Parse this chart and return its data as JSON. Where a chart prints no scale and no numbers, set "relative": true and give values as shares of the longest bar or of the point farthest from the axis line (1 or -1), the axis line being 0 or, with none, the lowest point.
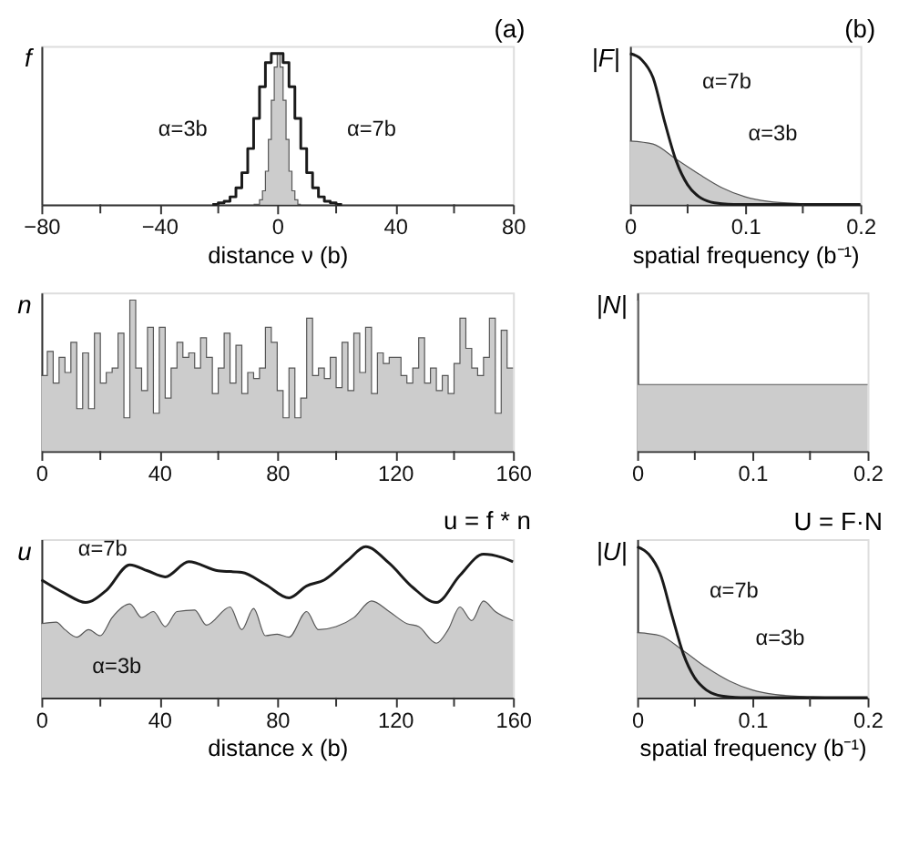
{
  "chart_data": [
    {
      "type": "step",
      "relative": true,
      "title": "(a)",
      "ylabel": "f",
      "xlabel": "distance ν (b)",
      "xlim": [
        -80,
        80
      ],
      "xticks": [
        -80,
        {
          "value": -60,
          "label": null
        },
        -40,
        {
          "value": -20,
          "label": null
        },
        0,
        {
          "value": 20,
          "label": null
        },
        40,
        {
          "value": 60,
          "label": null
        },
        80
      ],
      "series": [
        {
          "type": "area",
          "color": "#cccccc",
          "x": [
            -8,
            -7,
            -6,
            -5,
            -4,
            -3,
            -2,
            -1,
            0,
            1,
            2,
            3,
            4,
            5,
            6,
            7,
            8
          ],
          "values": [
            0,
            0,
            0.03,
            0.09,
            0.22,
            0.43,
            0.69,
            0.91,
            1,
            0.91,
            0.69,
            0.43,
            0.22,
            0.09,
            0.03,
            0,
            0
          ]
        },
        {
          "type": "step",
          "color": "#1a1a1a",
          "x": [
            -22,
            -20,
            -18,
            -16,
            -14,
            -12,
            -10,
            -8,
            -6,
            -4,
            -2,
            0,
            2,
            4,
            6,
            8,
            10,
            12,
            14,
            16,
            18,
            20,
            22
          ],
          "values": [
            0,
            0.01,
            0.02,
            0.05,
            0.11,
            0.21,
            0.37,
            0.57,
            0.78,
            0.94,
            1,
            1,
            0.94,
            0.78,
            0.57,
            0.37,
            0.21,
            0.11,
            0.05,
            0.02,
            0.01,
            0,
            0
          ]
        }
      ],
      "annotations": [
        "α=3b",
        "α=7b"
      ]
    },
    {
      "type": "line",
      "relative": true,
      "title": "(b)",
      "ylabel": "|F|",
      "xlabel": "spatial frequency (b⁻¹)",
      "xlim": [
        0,
        0.2
      ],
      "xticks": [
        0,
        {
          "value": 0.05,
          "label": null
        },
        0.1,
        {
          "value": 0.15,
          "label": null
        },
        0.2
      ],
      "series": [
        {
          "type": "area",
          "color": "#cccccc",
          "x": [
            0,
            0.02,
            0.04,
            0.06,
            0.08,
            0.1,
            0.12,
            0.15,
            0.17,
            0.2
          ],
          "values": [
            0.42,
            0.4,
            0.3,
            0.2,
            0.11,
            0.05,
            0.02,
            0.005,
            0,
            0
          ]
        },
        {
          "type": "line",
          "color": "#1a1a1a",
          "x": [
            0,
            0.01,
            0.02,
            0.03,
            0.04,
            0.05,
            0.06,
            0.07,
            0.08,
            0.09,
            0.2
          ],
          "values": [
            1,
            0.96,
            0.84,
            0.55,
            0.29,
            0.13,
            0.05,
            0.015,
            0.004,
            0,
            0
          ]
        }
      ],
      "annotations": [
        "α=7b",
        "α=3b"
      ]
    },
    {
      "type": "step",
      "relative": true,
      "ylabel": "n",
      "xlim": [
        0,
        160
      ],
      "xticks": [
        0,
        {
          "value": 20,
          "label": null
        },
        40,
        {
          "value": 60,
          "label": null
        },
        80,
        {
          "value": 100,
          "label": null
        },
        120,
        {
          "value": 140,
          "label": null
        },
        160
      ],
      "series": [
        {
          "type": "area",
          "color": "#cccccc",
          "x": [
            0,
            2,
            4,
            6,
            8,
            10,
            12,
            14,
            16,
            18,
            20,
            22,
            24,
            26,
            28,
            30,
            32,
            34,
            36,
            38,
            40,
            42,
            44,
            46,
            48,
            50,
            52,
            54,
            56,
            58,
            60,
            62,
            64,
            66,
            68,
            70,
            72,
            74,
            76,
            78,
            80,
            82,
            84,
            86,
            88,
            90,
            92,
            94,
            96,
            98,
            100,
            102,
            104,
            106,
            108,
            110,
            112,
            114,
            116,
            118,
            120,
            122,
            124,
            126,
            128,
            130,
            132,
            134,
            136,
            138,
            140,
            142,
            144,
            146,
            148,
            150,
            152,
            154,
            156,
            158,
            160
          ],
          "values": [
            0.5,
            0.66,
            0.45,
            0.62,
            0.52,
            0.72,
            0.28,
            0.65,
            0.28,
            0.78,
            0.45,
            0.52,
            0.55,
            0.78,
            0.22,
            1,
            0.55,
            0.4,
            0.82,
            0.25,
            0.82,
            0.35,
            0.55,
            0.72,
            0.62,
            0.65,
            0.55,
            0.75,
            0.62,
            0.38,
            0.55,
            0.78,
            0.45,
            0.7,
            0.38,
            0.52,
            0.48,
            0.55,
            0.82,
            0.72,
            0.4,
            0.22,
            0.55,
            0.22,
            0.35,
            0.88,
            0.5,
            0.55,
            0.48,
            0.62,
            0.42,
            0.72,
            0.4,
            0.78,
            0.52,
            0.82,
            0.38,
            0.65,
            0.58,
            0.62,
            0.62,
            0.5,
            0.45,
            0.55,
            0.75,
            0.45,
            0.55,
            0.4,
            0.5,
            0.38,
            0.58,
            0.88,
            0.68,
            0.55,
            0.5,
            0.62,
            0.88,
            0.25,
            0.8,
            0.55,
            0.55
          ]
        }
      ]
    },
    {
      "type": "step",
      "relative": true,
      "ylabel": "|N|",
      "xlim": [
        0,
        0.2
      ],
      "xticks": [
        0,
        {
          "value": 0.05,
          "label": null
        },
        0.1,
        {
          "value": 0.15,
          "label": null
        },
        0.2
      ],
      "series": [
        {
          "type": "area",
          "color": "#cccccc",
          "x": [
            0,
            0.001,
            0.2
          ],
          "values": [
            1,
            0.44,
            0.44
          ]
        }
      ]
    },
    {
      "type": "line",
      "relative": true,
      "title": "u = f * n",
      "ylabel": "u",
      "xlabel": "distance x (b)",
      "xlim": [
        0,
        160
      ],
      "xticks": [
        0,
        {
          "value": 20,
          "label": null
        },
        40,
        {
          "value": 60,
          "label": null
        },
        80,
        {
          "value": 100,
          "label": null
        },
        120,
        {
          "value": 140,
          "label": null
        },
        160
      ],
      "series": [
        {
          "type": "area",
          "color": "#cccccc",
          "x": [
            0,
            5,
            8,
            12,
            16,
            20,
            24,
            30,
            34,
            38,
            42,
            46,
            52,
            56,
            64,
            68,
            72,
            76,
            80,
            84,
            90,
            94,
            100,
            106,
            112,
            118,
            124,
            128,
            134,
            138,
            142,
            146,
            150,
            154,
            160
          ],
          "values": [
            0.49,
            0.5,
            0.45,
            0.4,
            0.45,
            0.41,
            0.53,
            0.62,
            0.53,
            0.57,
            0.47,
            0.57,
            0.58,
            0.48,
            0.6,
            0.45,
            0.59,
            0.41,
            0.42,
            0.4,
            0.57,
            0.45,
            0.47,
            0.53,
            0.64,
            0.57,
            0.49,
            0.47,
            0.36,
            0.45,
            0.6,
            0.51,
            0.64,
            0.57,
            0.51
          ]
        },
        {
          "type": "line",
          "color": "#1a1a1a",
          "x": [
            0,
            8,
            15,
            22,
            30,
            36,
            42,
            50,
            60,
            68,
            76,
            84,
            90,
            96,
            104,
            110,
            118,
            126,
            134,
            142,
            150,
            156,
            160
          ],
          "values": [
            0.78,
            0.69,
            0.63,
            0.71,
            0.88,
            0.84,
            0.8,
            0.9,
            0.84,
            0.83,
            0.75,
            0.66,
            0.74,
            0.78,
            0.91,
            1,
            0.89,
            0.73,
            0.63,
            0.81,
            0.95,
            0.93,
            0.9
          ]
        }
      ],
      "annotations": [
        "α=7b",
        "α=3b"
      ]
    },
    {
      "type": "line",
      "relative": true,
      "title": "U = F·N",
      "ylabel": "|U|",
      "xlabel": "spatial frequency (b⁻¹)",
      "xlim": [
        0,
        0.2
      ],
      "xticks": [
        0,
        {
          "value": 0.05,
          "label": null
        },
        0.1,
        {
          "value": 0.15,
          "label": null
        },
        0.2
      ],
      "series": [
        {
          "type": "area",
          "color": "#cccccc",
          "x": [
            0,
            0.02,
            0.04,
            0.06,
            0.08,
            0.1,
            0.12,
            0.15,
            0.17,
            0.2
          ],
          "values": [
            0.43,
            0.41,
            0.31,
            0.2,
            0.11,
            0.05,
            0.02,
            0.005,
            0,
            0
          ]
        },
        {
          "type": "line",
          "color": "#1a1a1a",
          "x": [
            0,
            0.01,
            0.02,
            0.03,
            0.04,
            0.05,
            0.06,
            0.07,
            0.08,
            0.09,
            0.2
          ],
          "values": [
            1,
            0.95,
            0.82,
            0.55,
            0.29,
            0.13,
            0.05,
            0.015,
            0.004,
            0,
            0
          ]
        }
      ],
      "annotations": [
        "α=7b",
        "α=3b"
      ]
    }
  ]
}
